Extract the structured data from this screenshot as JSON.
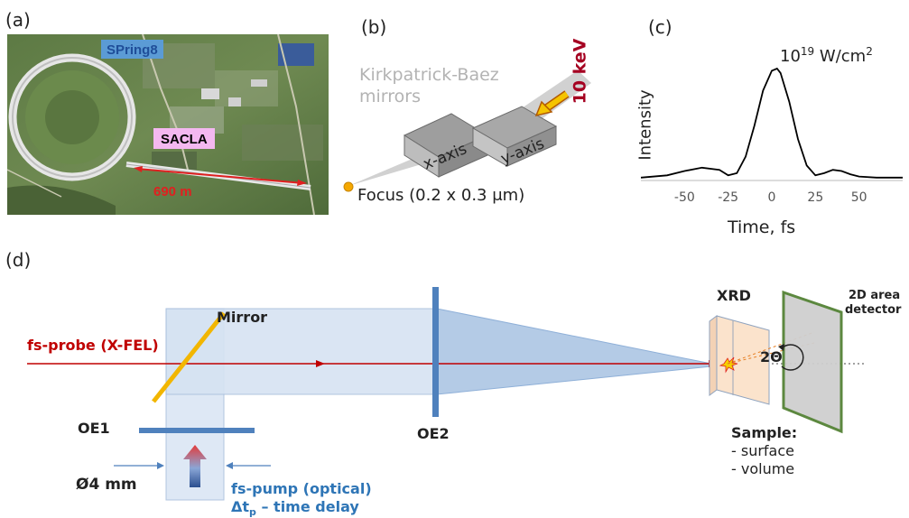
{
  "panels": {
    "a": "(a)",
    "b": "(b)",
    "c": "(c)",
    "d": "(d)"
  },
  "panel_a": {
    "label_spring8": "SPring8",
    "label_sacla": "SACLA",
    "length": "690 m",
    "colors": {
      "spring8_box": "#5b9bd5",
      "sacla_box": "#f4b8f0",
      "length_arrow": "#e02020"
    }
  },
  "panel_b": {
    "mirrors_line1": "Kirkpatrick-Baez",
    "mirrors_line2": "mirrors",
    "energy": "10 keV",
    "x_axis": "x-axis",
    "y_axis": "y-axis",
    "focus": "Focus (0.2 x 0.3 μm)",
    "colors": {
      "energy": "#a50021",
      "beam_arrow": "#f5c400",
      "focus_dot": "#f5a800"
    }
  },
  "panel_c": {
    "intensity_label": "10¹⁹ W/cm²",
    "intensity_base": "10",
    "intensity_exp": "19",
    "intensity_unit": " W/cm",
    "intensity_unit_exp": "2",
    "ylabel": "Intensity",
    "xlabel": "Time, fs"
  },
  "chart_data": {
    "type": "line",
    "title": "",
    "xlabel": "Time, fs",
    "ylabel": "Intensity",
    "xlim": [
      -75,
      75
    ],
    "x_ticks": [
      "-50",
      "-25",
      "0",
      "25",
      "50"
    ],
    "x": [
      -75,
      -60,
      -50,
      -40,
      -30,
      -25,
      -20,
      -15,
      -10,
      -5,
      0,
      3,
      5,
      10,
      15,
      20,
      25,
      30,
      35,
      40,
      45,
      50,
      60,
      75
    ],
    "y": [
      0.01,
      0.03,
      0.07,
      0.1,
      0.08,
      0.03,
      0.05,
      0.2,
      0.48,
      0.8,
      0.98,
      1.0,
      0.96,
      0.7,
      0.36,
      0.12,
      0.03,
      0.05,
      0.08,
      0.07,
      0.04,
      0.02,
      0.01,
      0.01
    ],
    "grid": false
  },
  "panel_d": {
    "probe": "fs-probe (X-FEL)",
    "mirror": "Mirror",
    "oe1": "OE1",
    "oe2": "OE2",
    "diameter": "Ø4 mm",
    "pump": "fs-pump (optical)",
    "delay": "Δt",
    "delay_sub": "p",
    "delay_rest": " – time delay",
    "xrd": "XRD",
    "detector_line1": "2D area",
    "detector_line2": "detector",
    "angle": "2Θ",
    "sample_title": "Sample:",
    "sample_items": [
      "- surface",
      "- volume"
    ],
    "colors": {
      "probe": "#c00000",
      "mirror": "#f2b600",
      "optics": "#4f81bd",
      "pump_text": "#2e75b6",
      "detector": "#548235"
    }
  }
}
